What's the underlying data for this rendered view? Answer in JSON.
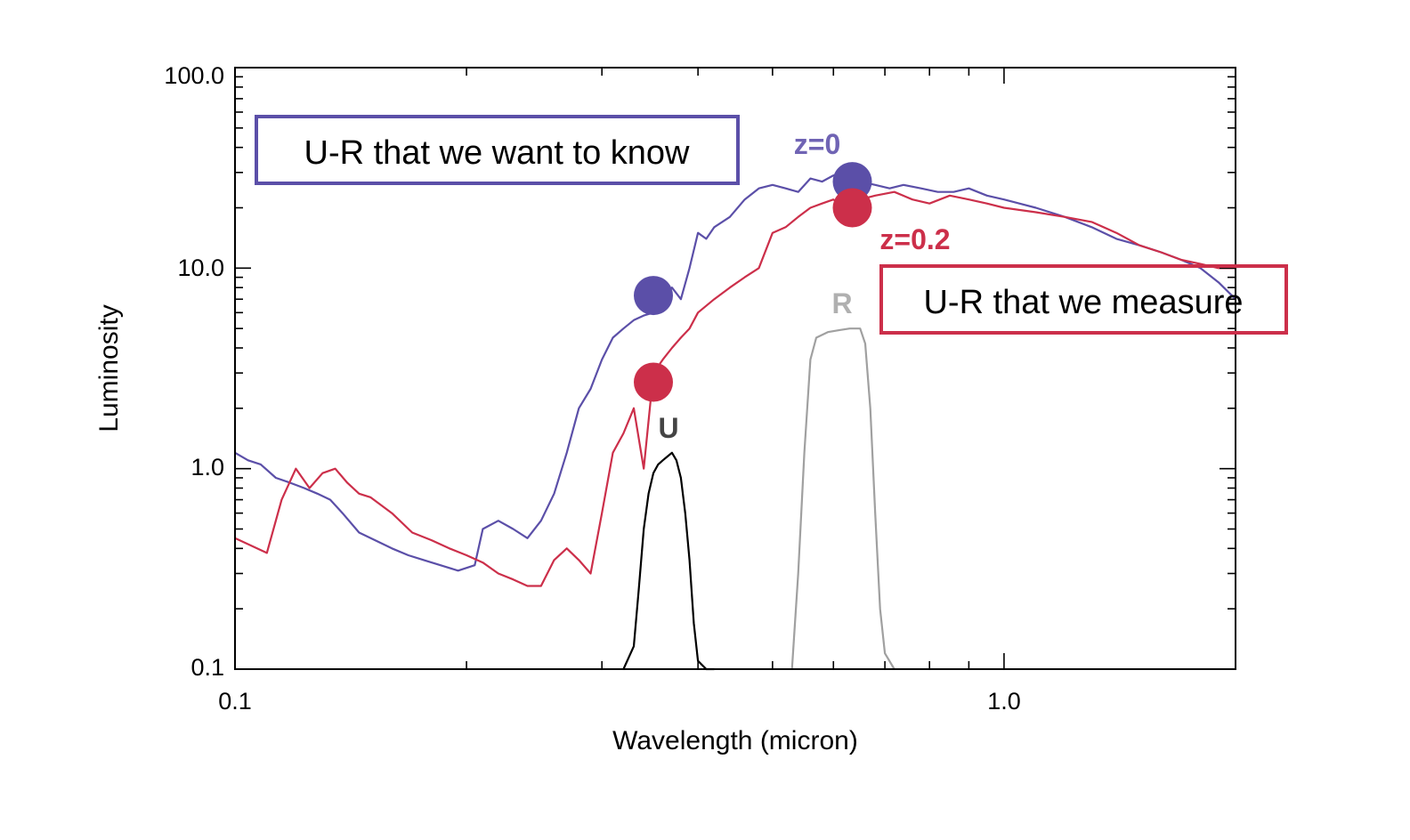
{
  "chart_data": {
    "type": "line",
    "xlabel": "Wavelength (micron)",
    "ylabel": "Luminosity",
    "xscale": "log",
    "yscale": "log",
    "xlim": [
      0.1,
      2.0
    ],
    "ylim": [
      0.1,
      100.0
    ],
    "x_ticks": [
      {
        "value": 0.1,
        "label": "0.1"
      },
      {
        "value": 1.0,
        "label": "1.0"
      }
    ],
    "y_ticks": [
      {
        "value": 0.1,
        "label": "0.1"
      },
      {
        "value": 1.0,
        "label": "1.0"
      },
      {
        "value": 10.0,
        "label": "10.0"
      },
      {
        "value": 100.0,
        "label": "100.0"
      }
    ],
    "grid": false,
    "colors": {
      "z0": "#5b4fa8",
      "z02": "#cc2f4a",
      "U_filter": "#000000",
      "R_filter": "#a0a0a0"
    },
    "series": [
      {
        "key": "z0",
        "x": [
          0.1,
          0.104,
          0.108,
          0.113,
          0.118,
          0.123,
          0.128,
          0.133,
          0.138,
          0.145,
          0.152,
          0.16,
          0.168,
          0.176,
          0.185,
          0.195,
          0.205,
          0.21,
          0.22,
          0.23,
          0.24,
          0.25,
          0.26,
          0.27,
          0.28,
          0.29,
          0.3,
          0.31,
          0.32,
          0.33,
          0.34,
          0.35,
          0.36,
          0.37,
          0.38,
          0.39,
          0.4,
          0.41,
          0.42,
          0.44,
          0.46,
          0.48,
          0.5,
          0.52,
          0.54,
          0.56,
          0.58,
          0.6,
          0.62,
          0.65,
          0.68,
          0.71,
          0.74,
          0.78,
          0.82,
          0.86,
          0.9,
          0.95,
          1.0,
          1.1,
          1.2,
          1.3,
          1.4,
          1.5,
          1.6,
          1.7,
          1.8,
          1.9,
          2.0
        ],
        "y": [
          1.2,
          1.1,
          1.05,
          0.9,
          0.85,
          0.8,
          0.75,
          0.7,
          0.6,
          0.48,
          0.44,
          0.4,
          0.37,
          0.35,
          0.33,
          0.31,
          0.33,
          0.5,
          0.55,
          0.5,
          0.45,
          0.55,
          0.75,
          1.2,
          2.0,
          2.5,
          3.5,
          4.5,
          5.0,
          5.5,
          5.8,
          6.0,
          7.0,
          8.0,
          7.0,
          10.0,
          15.0,
          14.0,
          16.0,
          18.0,
          22.0,
          25.0,
          26.0,
          25.0,
          24.0,
          28.0,
          27.0,
          29.0,
          28.0,
          27.0,
          26.0,
          25.0,
          26.0,
          25.0,
          24.0,
          24.0,
          25.0,
          23.0,
          22.0,
          20.0,
          18.0,
          16.0,
          14.0,
          13.0,
          12.0,
          11.0,
          10.0,
          8.5,
          7.0
        ]
      },
      {
        "key": "z02",
        "x": [
          0.1,
          0.11,
          0.115,
          0.12,
          0.125,
          0.13,
          0.135,
          0.14,
          0.145,
          0.15,
          0.16,
          0.17,
          0.18,
          0.19,
          0.2,
          0.21,
          0.22,
          0.23,
          0.24,
          0.25,
          0.26,
          0.27,
          0.28,
          0.29,
          0.3,
          0.31,
          0.32,
          0.33,
          0.34,
          0.35,
          0.36,
          0.37,
          0.38,
          0.39,
          0.4,
          0.42,
          0.44,
          0.46,
          0.48,
          0.5,
          0.52,
          0.54,
          0.56,
          0.58,
          0.6,
          0.62,
          0.65,
          0.68,
          0.72,
          0.76,
          0.8,
          0.85,
          0.9,
          0.95,
          1.0,
          1.1,
          1.2,
          1.3,
          1.4,
          1.5,
          1.6,
          1.7,
          1.8,
          1.9,
          2.0
        ],
        "y": [
          0.45,
          0.38,
          0.7,
          1.0,
          0.8,
          0.95,
          1.0,
          0.85,
          0.75,
          0.72,
          0.6,
          0.48,
          0.44,
          0.4,
          0.37,
          0.34,
          0.3,
          0.28,
          0.26,
          0.26,
          0.35,
          0.4,
          0.35,
          0.3,
          0.6,
          1.2,
          1.5,
          2.0,
          1.0,
          3.0,
          3.5,
          4.0,
          4.5,
          5.0,
          6.0,
          7.0,
          8.0,
          9.0,
          10.0,
          15.0,
          16.0,
          18.0,
          20.0,
          21.0,
          22.0,
          20.0,
          22.0,
          23.0,
          24.0,
          22.0,
          21.0,
          23.0,
          22.0,
          21.0,
          20.0,
          19.0,
          18.0,
          17.0,
          15.0,
          13.0,
          12.0,
          11.0,
          10.5,
          10.0,
          10.0
        ]
      },
      {
        "key": "U_filter",
        "x": [
          0.32,
          0.33,
          0.335,
          0.34,
          0.345,
          0.35,
          0.355,
          0.36,
          0.365,
          0.37,
          0.375,
          0.38,
          0.385,
          0.39,
          0.395,
          0.4,
          0.41,
          0.42
        ],
        "y": [
          0.1,
          0.13,
          0.25,
          0.5,
          0.75,
          0.95,
          1.05,
          1.1,
          1.15,
          1.2,
          1.1,
          0.9,
          0.6,
          0.35,
          0.17,
          0.11,
          0.1,
          0.1
        ]
      },
      {
        "key": "R_filter",
        "x": [
          0.53,
          0.54,
          0.55,
          0.56,
          0.57,
          0.59,
          0.61,
          0.63,
          0.65,
          0.66,
          0.67,
          0.68,
          0.69,
          0.7,
          0.72
        ],
        "y": [
          0.1,
          0.3,
          1.2,
          3.5,
          4.5,
          4.8,
          4.9,
          5.0,
          5.0,
          4.2,
          2.0,
          0.6,
          0.2,
          0.12,
          0.1
        ]
      }
    ],
    "points": [
      {
        "key": "z0_U",
        "x": 0.35,
        "y": 7.3,
        "color": "#5b4fa8"
      },
      {
        "key": "z0_R",
        "x": 0.635,
        "y": 27.0,
        "color": "#5b4fa8"
      },
      {
        "key": "z02_U",
        "x": 0.35,
        "y": 2.7,
        "color": "#cc2f4a"
      },
      {
        "key": "z02_R",
        "x": 0.635,
        "y": 20.0,
        "color": "#cc2f4a"
      }
    ],
    "annotations": {
      "box_want": "U-R that we want to know",
      "box_measure": "U-R that we measure",
      "z0_label": "z=0",
      "z02_label": "z=0.2",
      "U_label": "U",
      "R_label": "R"
    }
  }
}
